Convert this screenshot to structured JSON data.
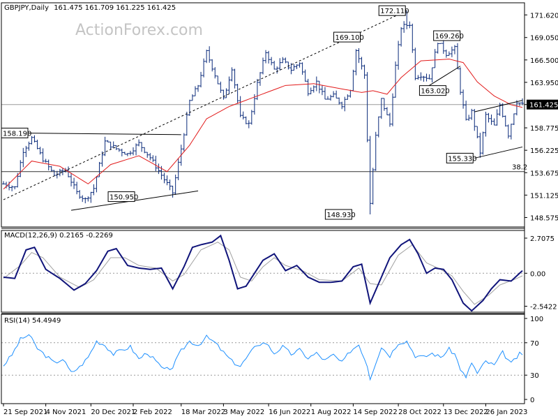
{
  "chart_data": [
    {
      "type": "candlestick",
      "title": "GBPJPY,Daily",
      "ohlc_readout": "161.475 161.709 161.225 161.425",
      "watermark": "ActionForex.com",
      "ylim": [
        147.5,
        173.0
      ],
      "y_ticks": [
        "171.620",
        "169.050",
        "166.500",
        "163.950",
        "161.425",
        "158.775",
        "156.225",
        "153.675",
        "151.125",
        "148.575"
      ],
      "current_price_label": "161.425",
      "current_price": 161.425,
      "retracement_label": "38.2",
      "retracement_level": 153.8,
      "annotations": [
        {
          "text": "158.190",
          "x": 0,
          "y": 158.19
        },
        {
          "text": "150.950",
          "x": 47,
          "y": 150.95
        },
        {
          "text": "148.930",
          "x": 124,
          "y": 148.93
        },
        {
          "text": "169.100",
          "x": 127,
          "y": 169.1
        },
        {
          "text": "172.110",
          "x": 143,
          "y": 172.11
        },
        {
          "text": "163.020",
          "x": 148,
          "y": 163.02
        },
        {
          "text": "169.260",
          "x": 153,
          "y": 169.26
        },
        {
          "text": "155.330",
          "x": 167,
          "y": 155.33
        }
      ],
      "close_path": [
        [
          0,
          152.4
        ],
        [
          4,
          152.0
        ],
        [
          7,
          156.2
        ],
        [
          10,
          157.6
        ],
        [
          14,
          155.2
        ],
        [
          18,
          153.4
        ],
        [
          22,
          154.0
        ],
        [
          26,
          151.4
        ],
        [
          29,
          150.6
        ],
        [
          32,
          151.9
        ],
        [
          36,
          157.2
        ],
        [
          40,
          156.4
        ],
        [
          44,
          155.8
        ],
        [
          48,
          157.0
        ],
        [
          52,
          155.4
        ],
        [
          56,
          153.4
        ],
        [
          60,
          151.4
        ],
        [
          63,
          156.4
        ],
        [
          66,
          161.8
        ],
        [
          69,
          163.6
        ],
        [
          72,
          167.4
        ],
        [
          75,
          164.8
        ],
        [
          78,
          162.0
        ],
        [
          81,
          165.6
        ],
        [
          84,
          160.0
        ],
        [
          87,
          159.2
        ],
        [
          90,
          163.8
        ],
        [
          93,
          167.4
        ],
        [
          96,
          165.4
        ],
        [
          99,
          166.4
        ],
        [
          102,
          165.4
        ],
        [
          105,
          166.2
        ],
        [
          108,
          162.9
        ],
        [
          111,
          164.0
        ],
        [
          114,
          162.0
        ],
        [
          117,
          162.4
        ],
        [
          120,
          161.4
        ],
        [
          123,
          163.2
        ],
        [
          125,
          167.6
        ],
        [
          128,
          164.8
        ],
        [
          130,
          150.2
        ],
        [
          132,
          157.8
        ],
        [
          134,
          162.0
        ],
        [
          137,
          159.2
        ],
        [
          139,
          165.8
        ],
        [
          141,
          170.2
        ],
        [
          144,
          170.6
        ],
        [
          146,
          164.6
        ],
        [
          148,
          164.8
        ],
        [
          151,
          164.4
        ],
        [
          154,
          168.6
        ],
        [
          157,
          167.2
        ],
        [
          160,
          167.8
        ],
        [
          162,
          163.0
        ],
        [
          164,
          159.5
        ],
        [
          166,
          160.6
        ],
        [
          169,
          156.0
        ],
        [
          171,
          160.2
        ],
        [
          174,
          159.0
        ],
        [
          176,
          161.4
        ],
        [
          179,
          158.0
        ],
        [
          182,
          161.8
        ],
        [
          184,
          161.4
        ]
      ],
      "moving_average": [
        [
          0,
          151.8
        ],
        [
          10,
          155.0
        ],
        [
          20,
          154.4
        ],
        [
          30,
          152.4
        ],
        [
          38,
          154.6
        ],
        [
          48,
          155.6
        ],
        [
          58,
          153.8
        ],
        [
          66,
          156.8
        ],
        [
          72,
          159.8
        ],
        [
          80,
          161.2
        ],
        [
          90,
          162.4
        ],
        [
          100,
          163.6
        ],
        [
          110,
          163.8
        ],
        [
          120,
          163.2
        ],
        [
          127,
          162.8
        ],
        [
          131,
          163.0
        ],
        [
          136,
          162.6
        ],
        [
          141,
          164.5
        ],
        [
          148,
          166.4
        ],
        [
          158,
          166.6
        ],
        [
          163,
          166.2
        ],
        [
          168,
          164.0
        ],
        [
          174,
          162.4
        ],
        [
          180,
          161.4
        ],
        [
          184,
          161.1
        ]
      ],
      "trendlines": [
        {
          "style": "solid",
          "points": [
            [
              0,
              158.2
            ],
            [
              63,
              158.0
            ]
          ]
        },
        {
          "style": "solid",
          "points": [
            [
              24,
              149.4
            ],
            [
              69,
              151.6
            ]
          ]
        },
        {
          "style": "dashed",
          "points": [
            [
              0,
              150.6
            ],
            [
              143,
              172.11
            ]
          ]
        },
        {
          "style": "solid",
          "points": [
            [
              148,
              163.0
            ],
            [
              162,
              165.8
            ]
          ]
        },
        {
          "style": "solid",
          "points": [
            [
              153,
              169.3
            ],
            [
              162,
              169.6
            ]
          ]
        },
        {
          "style": "solid",
          "points": [
            [
              167,
              160.6
            ],
            [
              184,
              161.9
            ]
          ]
        },
        {
          "style": "solid",
          "points": [
            [
              167,
              155.33
            ],
            [
              184,
              156.6
            ]
          ]
        }
      ]
    },
    {
      "type": "line",
      "title": "MACD(12,26,9) 0.2165 -0.2269",
      "ylim": [
        -3.0,
        3.3
      ],
      "y_ticks": [
        "2.7075",
        "0.00",
        "-2.5422"
      ],
      "macd": [
        [
          0,
          -0.3
        ],
        [
          4,
          -0.4
        ],
        [
          8,
          1.8
        ],
        [
          11,
          2.0
        ],
        [
          15,
          0.3
        ],
        [
          20,
          -0.4
        ],
        [
          25,
          -1.3
        ],
        [
          29,
          -0.8
        ],
        [
          33,
          0.2
        ],
        [
          37,
          1.7
        ],
        [
          40,
          1.9
        ],
        [
          44,
          0.6
        ],
        [
          48,
          0.4
        ],
        [
          52,
          0.3
        ],
        [
          56,
          0.4
        ],
        [
          60,
          -1.2
        ],
        [
          64,
          0.5
        ],
        [
          67,
          2.0
        ],
        [
          70,
          2.2
        ],
        [
          74,
          2.4
        ],
        [
          77,
          2.9
        ],
        [
          80,
          1.0
        ],
        [
          83,
          -1.2
        ],
        [
          86,
          -1.0
        ],
        [
          89,
          0.0
        ],
        [
          92,
          1.0
        ],
        [
          96,
          1.5
        ],
        [
          100,
          0.2
        ],
        [
          104,
          0.6
        ],
        [
          108,
          -0.3
        ],
        [
          112,
          -0.7
        ],
        [
          116,
          -0.7
        ],
        [
          120,
          -0.6
        ],
        [
          124,
          0.5
        ],
        [
          127,
          0.7
        ],
        [
          130,
          -2.3
        ],
        [
          133,
          -0.8
        ],
        [
          137,
          1.2
        ],
        [
          141,
          2.2
        ],
        [
          144,
          2.6
        ],
        [
          147,
          1.5
        ],
        [
          150,
          0.0
        ],
        [
          153,
          0.4
        ],
        [
          156,
          0.3
        ],
        [
          159,
          -0.5
        ],
        [
          163,
          -2.3
        ],
        [
          166,
          -2.9
        ],
        [
          170,
          -2.1
        ],
        [
          173,
          -1.2
        ],
        [
          176,
          -0.5
        ],
        [
          180,
          -0.6
        ],
        [
          184,
          0.2
        ]
      ],
      "signal": [
        [
          0,
          -0.4
        ],
        [
          6,
          0.6
        ],
        [
          10,
          1.6
        ],
        [
          14,
          1.2
        ],
        [
          20,
          -0.3
        ],
        [
          27,
          -1.1
        ],
        [
          32,
          -0.5
        ],
        [
          38,
          1.2
        ],
        [
          43,
          1.2
        ],
        [
          48,
          0.6
        ],
        [
          54,
          0.4
        ],
        [
          60,
          -0.6
        ],
        [
          64,
          -0.1
        ],
        [
          70,
          1.8
        ],
        [
          76,
          2.4
        ],
        [
          80,
          1.8
        ],
        [
          84,
          -0.3
        ],
        [
          88,
          -0.6
        ],
        [
          92,
          0.5
        ],
        [
          96,
          1.2
        ],
        [
          100,
          0.6
        ],
        [
          106,
          0.2
        ],
        [
          112,
          -0.5
        ],
        [
          120,
          -0.6
        ],
        [
          126,
          0.4
        ],
        [
          130,
          -0.8
        ],
        [
          134,
          -0.9
        ],
        [
          140,
          1.4
        ],
        [
          145,
          2.2
        ],
        [
          150,
          0.8
        ],
        [
          155,
          0.3
        ],
        [
          159,
          -0.2
        ],
        [
          163,
          -1.4
        ],
        [
          167,
          -2.4
        ],
        [
          172,
          -1.7
        ],
        [
          176,
          -0.9
        ],
        [
          181,
          -0.5
        ],
        [
          184,
          -0.2
        ]
      ]
    },
    {
      "type": "line",
      "title": "RSI(14) 54.4949",
      "ylim": [
        0,
        100
      ],
      "y_ticks": [
        "100",
        "70",
        "30",
        "0"
      ],
      "levels": [
        30,
        70
      ],
      "rsi": [
        [
          0,
          42
        ],
        [
          3,
          55
        ],
        [
          6,
          74
        ],
        [
          9,
          80
        ],
        [
          12,
          63
        ],
        [
          15,
          54
        ],
        [
          18,
          45
        ],
        [
          21,
          50
        ],
        [
          24,
          33
        ],
        [
          27,
          40
        ],
        [
          30,
          52
        ],
        [
          33,
          72
        ],
        [
          36,
          67
        ],
        [
          39,
          56
        ],
        [
          42,
          61
        ],
        [
          45,
          65
        ],
        [
          48,
          50
        ],
        [
          51,
          58
        ],
        [
          54,
          47
        ],
        [
          57,
          36
        ],
        [
          60,
          40
        ],
        [
          63,
          60
        ],
        [
          66,
          72
        ],
        [
          69,
          67
        ],
        [
          72,
          77
        ],
        [
          75,
          70
        ],
        [
          78,
          58
        ],
        [
          81,
          47
        ],
        [
          84,
          41
        ],
        [
          87,
          55
        ],
        [
          90,
          68
        ],
        [
          93,
          70
        ],
        [
          96,
          57
        ],
        [
          99,
          65
        ],
        [
          102,
          56
        ],
        [
          105,
          61
        ],
        [
          108,
          51
        ],
        [
          111,
          57
        ],
        [
          114,
          48
        ],
        [
          117,
          55
        ],
        [
          120,
          45
        ],
        [
          123,
          60
        ],
        [
          126,
          68
        ],
        [
          129,
          42
        ],
        [
          130,
          26
        ],
        [
          132,
          46
        ],
        [
          134,
          65
        ],
        [
          137,
          54
        ],
        [
          140,
          70
        ],
        [
          143,
          72
        ],
        [
          146,
          54
        ],
        [
          149,
          52
        ],
        [
          152,
          57
        ],
        [
          155,
          52
        ],
        [
          158,
          62
        ],
        [
          160,
          56
        ],
        [
          162,
          38
        ],
        [
          164,
          26
        ],
        [
          166,
          46
        ],
        [
          168,
          32
        ],
        [
          171,
          47
        ],
        [
          174,
          42
        ],
        [
          177,
          58
        ],
        [
          180,
          44
        ],
        [
          183,
          56
        ],
        [
          184,
          54
        ]
      ]
    }
  ],
  "x_axis": {
    "bars": 185,
    "ticks": [
      {
        "i": 0,
        "label": "21 Sep 2021"
      },
      {
        "i": 15,
        "label": "4 Nov 2021"
      },
      {
        "i": 31,
        "label": "20 Dec 2021"
      },
      {
        "i": 46,
        "label": "2 Feb 2022"
      },
      {
        "i": 63,
        "label": "18 Mar 2022"
      },
      {
        "i": 78,
        "label": "3 May 2022"
      },
      {
        "i": 94,
        "label": "16 Jun 2022"
      },
      {
        "i": 109,
        "label": "1 Aug 2022"
      },
      {
        "i": 124,
        "label": "14 Sep 2022"
      },
      {
        "i": 140,
        "label": "28 Oct 2022"
      },
      {
        "i": 156,
        "label": "13 Dec 2022"
      },
      {
        "i": 171,
        "label": "26 Jan 2023"
      }
    ]
  }
}
